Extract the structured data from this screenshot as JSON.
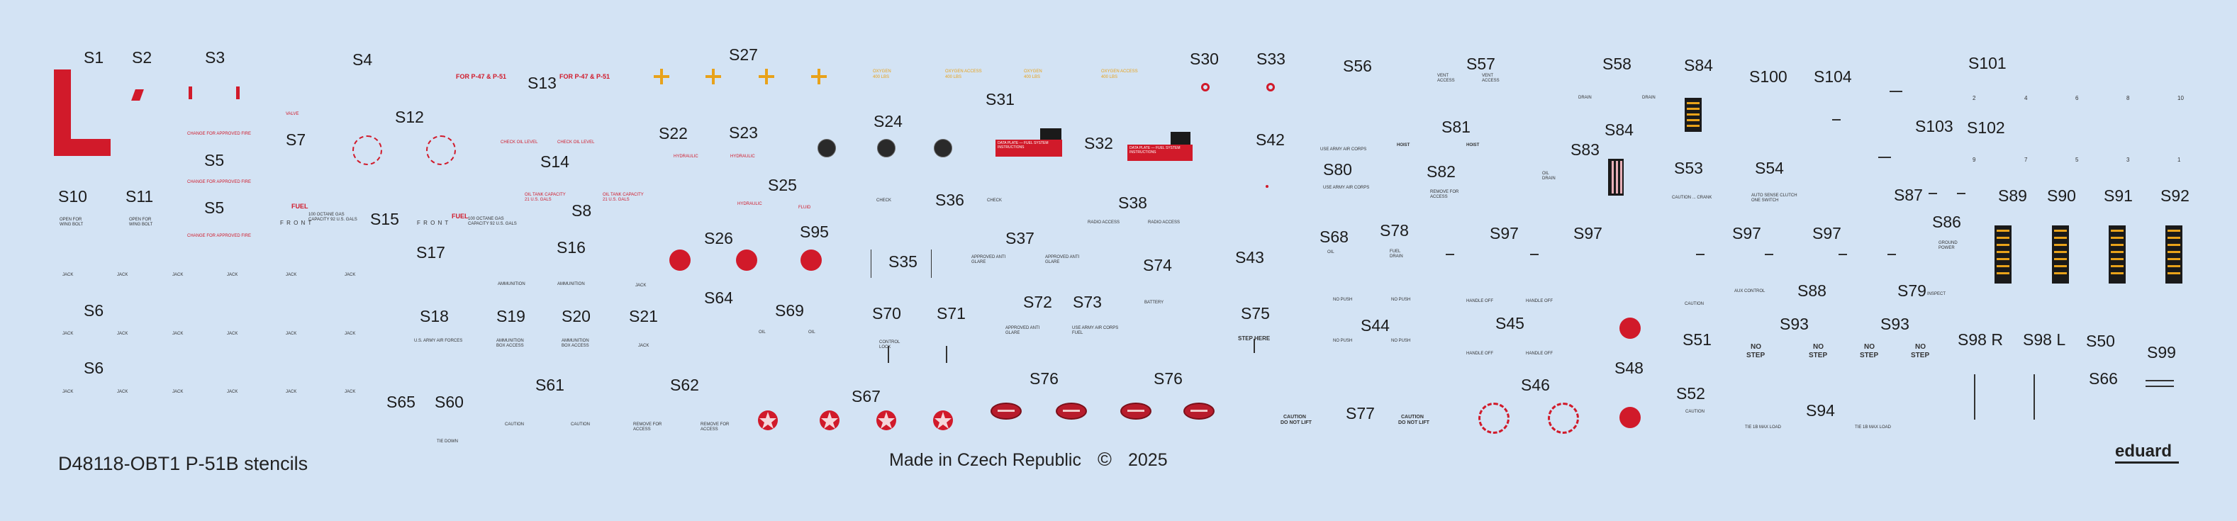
{
  "title": "D48118-OBT1 P-51B stencils",
  "made_in": "Made in Czech Republic",
  "copyright_symbol": "©",
  "year": "2025",
  "brand": "eduard",
  "labels": {
    "S1": "S1",
    "S2": "S2",
    "S3": "S3",
    "S4": "S4",
    "S5": "S5",
    "S6": "S6",
    "S7": "S7",
    "S8": "S8",
    "S10": "S10",
    "S11": "S11",
    "S12": "S12",
    "S13": "S13",
    "S14": "S14",
    "S15": "S15",
    "S16": "S16",
    "S17": "S17",
    "S18": "S18",
    "S19": "S19",
    "S20": "S20",
    "S21": "S21",
    "S22": "S22",
    "S23": "S23",
    "S24": "S24",
    "S25": "S25",
    "S26": "S26",
    "S27": "S27",
    "S30": "S30",
    "S31": "S31",
    "S32": "S32",
    "S33": "S33",
    "S35": "S35",
    "S36": "S36",
    "S37": "S37",
    "S38": "S38",
    "S42": "S42",
    "S43": "S43",
    "S44": "S44",
    "S45": "S45",
    "S46": "S46",
    "S48": "S48",
    "S50": "S50",
    "S51": "S51",
    "S52": "S52",
    "S53": "S53",
    "S54": "S54",
    "S56": "S56",
    "S57": "S57",
    "S58": "S58",
    "S60": "S60",
    "S61": "S61",
    "S62": "S62",
    "S64": "S64",
    "S65": "S65",
    "S66": "S66",
    "S67": "S67",
    "S68": "S68",
    "S69": "S69",
    "S70": "S70",
    "S71": "S71",
    "S72": "S72",
    "S73": "S73",
    "S74": "S74",
    "S75": "S75",
    "S76": "S76",
    "S77": "S77",
    "S78": "S78",
    "S79": "S79",
    "S80": "S80",
    "S81": "S81",
    "S82": "S82",
    "S83": "S83",
    "S84": "S84",
    "S86": "S86",
    "S87": "S87",
    "S88": "S88",
    "S89": "S89",
    "S90": "S90",
    "S91": "S91",
    "S92": "S92",
    "S93": "S93",
    "S94": "S94",
    "S95": "S95",
    "S97": "S97",
    "S98R": "S98 R",
    "S98L": "S98 L",
    "S99": "S99",
    "S100": "S100",
    "S101": "S101",
    "S102": "S102",
    "S103": "S103",
    "S104": "S104"
  },
  "stencils": {
    "for_p47_p51": "FOR P-47 & P-51",
    "front": "F R O N T",
    "fuel": "FUEL",
    "step_here": "STEP HERE",
    "no": "NO",
    "step": "STEP",
    "caution": "CAUTION",
    "do_not_lift": "DO NOT LIFT",
    "hoist": "HOIST",
    "no_push": "NO PUSH",
    "handle_off": "HANDLE OFF",
    "tie_load": "TIE 1B MAX LOAD"
  },
  "colors": {
    "background": "#d3e3f4",
    "stencil_red": "#d11a2a",
    "stencil_yellow": "#e8a21a",
    "text": "#1c1c1c"
  }
}
